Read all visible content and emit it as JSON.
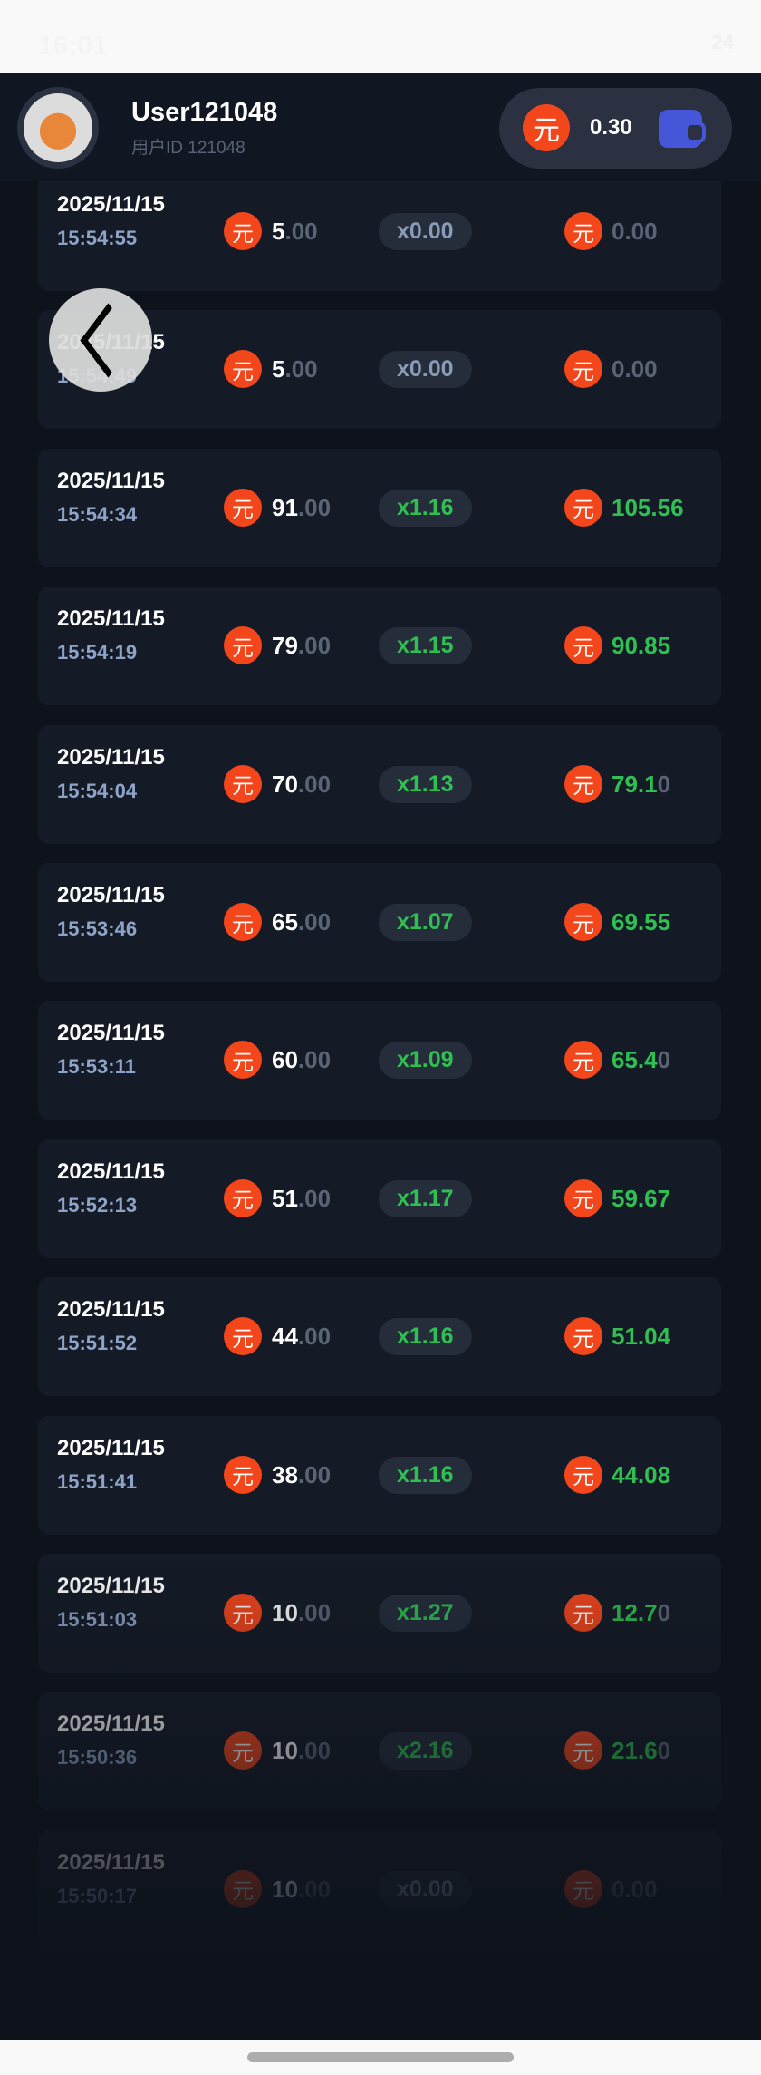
{
  "status_bar": {
    "time": "16:01",
    "battery": "24"
  },
  "header": {
    "username": "User121048",
    "user_id": "用户ID 121048",
    "balance": "0.30",
    "currency_symbol": "元"
  },
  "colors": {
    "accent": "#f4461b",
    "win": "#2fbf52",
    "wallet": "#4656d8"
  },
  "records": [
    {
      "date": "2025/11/15",
      "time": "15:54:55",
      "bet_int": "5",
      "bet_dec": ".00",
      "multiplier": "x0.00",
      "payout_main": "0.00",
      "payout_tail": "",
      "win": false
    },
    {
      "date": "2025/11/15",
      "time": "15:54:49",
      "bet_int": "5",
      "bet_dec": ".00",
      "multiplier": "x0.00",
      "payout_main": "0.00",
      "payout_tail": "",
      "win": false
    },
    {
      "date": "2025/11/15",
      "time": "15:54:34",
      "bet_int": "91",
      "bet_dec": ".00",
      "multiplier": "x1.16",
      "payout_main": "105.56",
      "payout_tail": "",
      "win": true
    },
    {
      "date": "2025/11/15",
      "time": "15:54:19",
      "bet_int": "79",
      "bet_dec": ".00",
      "multiplier": "x1.15",
      "payout_main": "90.85",
      "payout_tail": "",
      "win": true
    },
    {
      "date": "2025/11/15",
      "time": "15:54:04",
      "bet_int": "70",
      "bet_dec": ".00",
      "multiplier": "x1.13",
      "payout_main": "79.1",
      "payout_tail": "0",
      "win": true
    },
    {
      "date": "2025/11/15",
      "time": "15:53:46",
      "bet_int": "65",
      "bet_dec": ".00",
      "multiplier": "x1.07",
      "payout_main": "69.55",
      "payout_tail": "",
      "win": true
    },
    {
      "date": "2025/11/15",
      "time": "15:53:11",
      "bet_int": "60",
      "bet_dec": ".00",
      "multiplier": "x1.09",
      "payout_main": "65.4",
      "payout_tail": "0",
      "win": true
    },
    {
      "date": "2025/11/15",
      "time": "15:52:13",
      "bet_int": "51",
      "bet_dec": ".00",
      "multiplier": "x1.17",
      "payout_main": "59.67",
      "payout_tail": "",
      "win": true
    },
    {
      "date": "2025/11/15",
      "time": "15:51:52",
      "bet_int": "44",
      "bet_dec": ".00",
      "multiplier": "x1.16",
      "payout_main": "51.04",
      "payout_tail": "",
      "win": true
    },
    {
      "date": "2025/11/15",
      "time": "15:51:41",
      "bet_int": "38",
      "bet_dec": ".00",
      "multiplier": "x1.16",
      "payout_main": "44.08",
      "payout_tail": "",
      "win": true
    },
    {
      "date": "2025/11/15",
      "time": "15:51:03",
      "bet_int": "10",
      "bet_dec": ".00",
      "multiplier": "x1.27",
      "payout_main": "12.7",
      "payout_tail": "0",
      "win": true
    },
    {
      "date": "2025/11/15",
      "time": "15:50:36",
      "bet_int": "10",
      "bet_dec": ".00",
      "multiplier": "x2.16",
      "payout_main": "21.6",
      "payout_tail": "0",
      "win": true
    },
    {
      "date": "2025/11/15",
      "time": "15:50:17",
      "bet_int": "10",
      "bet_dec": ".00",
      "multiplier": "x0.00",
      "payout_main": "0.00",
      "payout_tail": "",
      "win": false
    }
  ]
}
